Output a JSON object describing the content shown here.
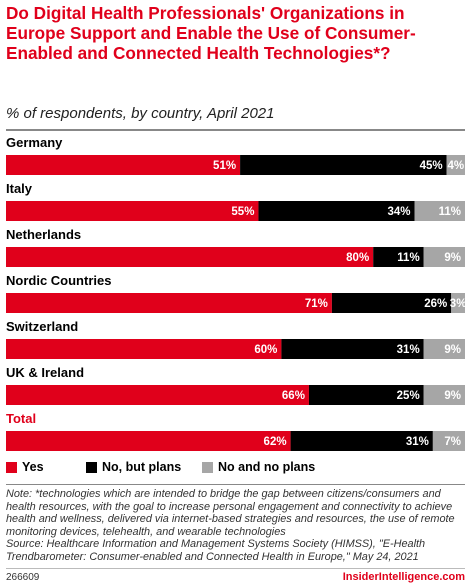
{
  "header": {
    "title": "Do Digital Health Professionals' Organizations in Europe Support and Enable the Use of Consumer-Enabled and Connected Health Technologies*?",
    "subtitle": "% of respondents, by country, April 2021"
  },
  "chart_data": {
    "type": "bar",
    "orientation": "horizontal",
    "stacked": true,
    "categories": [
      "Germany",
      "Italy",
      "Netherlands",
      "Nordic Countries",
      "Switzerland",
      "UK & Ireland",
      "Total"
    ],
    "highlighted_category": "Total",
    "series": [
      {
        "name": "Yes",
        "color": "#e0001b",
        "values": [
          51,
          55,
          80,
          71,
          60,
          66,
          62
        ]
      },
      {
        "name": "No, but plans",
        "color": "#000000",
        "values": [
          45,
          34,
          11,
          26,
          31,
          25,
          31
        ]
      },
      {
        "name": "No and no plans",
        "color": "#a6a6a6",
        "values": [
          4,
          11,
          9,
          3,
          9,
          9,
          7
        ]
      }
    ],
    "value_suffix": "%",
    "xlim": [
      0,
      100
    ],
    "legend_position": "bottom-left",
    "grid": false
  },
  "legend": {
    "items": [
      {
        "label": "Yes",
        "color": "#e0001b"
      },
      {
        "label": "No, but plans",
        "color": "#000000"
      },
      {
        "label": "No and no plans",
        "color": "#a6a6a6"
      }
    ]
  },
  "footer": {
    "note": "Note: *technologies which are intended to bridge the gap between citizens/consumers and health resources, with the goal to increase personal engagement and connectivity to achieve health and wellness, delivered via internet-based strategies and resources, the use of remote monitoring devices, telehealth, and wearable technologies",
    "source": "Source: Healthcare Information and Management Systems Society (HIMSS), \"E-Health Trendbarometer: Consumer-enabled and Connected Health in Europe,\" May 24, 2021",
    "chart_id": "266609",
    "brand": "InsiderIntelligence.com"
  }
}
